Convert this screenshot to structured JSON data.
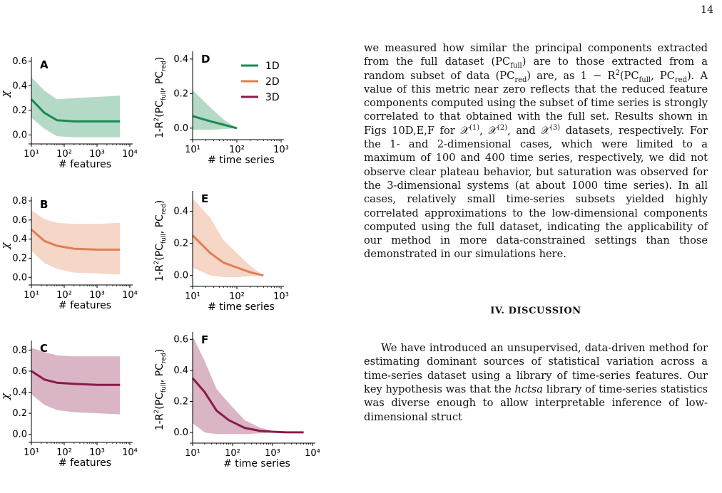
{
  "page": {
    "number": "14"
  },
  "figure": {
    "panel_letters": {
      "A": "A",
      "B": "B",
      "C": "C",
      "D": "D",
      "E": "E",
      "F": "F"
    },
    "legend": [
      {
        "label": "1D",
        "color": "#1a8a52"
      },
      {
        "label": "2D",
        "color": "#e07f52"
      },
      {
        "label": "3D",
        "color": "#8a1a4b"
      }
    ],
    "left_xlabel": "# features",
    "right_xlabel": "# time series",
    "left_ylabel": "χ",
    "right_ylabel_prefix": "1-R",
    "right_ylabel_super": "2",
    "right_ylabel_mid1": "(PC",
    "right_ylabel_sub1": "full",
    "right_ylabel_mid2": ", PC",
    "right_ylabel_sub2": "red",
    "right_ylabel_end": ")"
  },
  "chart_data": [
    {
      "panel": "A",
      "type": "line",
      "xlabel": "# features",
      "ylabel": "χ",
      "xscale": "log",
      "xlim": [
        10,
        10000
      ],
      "ylim": [
        -0.05,
        0.6
      ],
      "yticks": [
        "0.0",
        "0.2",
        "0.4",
        "0.6"
      ],
      "xticks": [
        "10¹",
        "10²",
        "10³",
        "10⁴"
      ],
      "series": [
        {
          "name": "1D",
          "color": "#1a8a52",
          "x": [
            10,
            25,
            60,
            200,
            1000,
            5000
          ],
          "y": [
            0.29,
            0.18,
            0.12,
            0.11,
            0.11,
            0.11
          ],
          "lower": [
            0.14,
            0.05,
            -0.01,
            -0.02,
            -0.02,
            -0.02
          ],
          "upper": [
            0.47,
            0.36,
            0.29,
            0.3,
            0.31,
            0.32
          ]
        }
      ]
    },
    {
      "panel": "B",
      "type": "line",
      "xlabel": "# features",
      "ylabel": "χ",
      "xscale": "log",
      "xlim": [
        10,
        10000
      ],
      "ylim": [
        -0.05,
        0.8
      ],
      "yticks": [
        "0.0",
        "0.2",
        "0.4",
        "0.6",
        "0.8"
      ],
      "xticks": [
        "10¹",
        "10²",
        "10³",
        "10⁴"
      ],
      "series": [
        {
          "name": "2D",
          "color": "#e07f52",
          "x": [
            10,
            25,
            60,
            200,
            1000,
            5000
          ],
          "y": [
            0.5,
            0.38,
            0.33,
            0.3,
            0.29,
            0.29
          ],
          "lower": [
            0.28,
            0.15,
            0.09,
            0.05,
            0.04,
            0.03
          ],
          "upper": [
            0.7,
            0.61,
            0.57,
            0.56,
            0.56,
            0.57
          ]
        }
      ]
    },
    {
      "panel": "C",
      "type": "line",
      "xlabel": "# features",
      "ylabel": "χ",
      "xscale": "log",
      "xlim": [
        10,
        10000
      ],
      "ylim": [
        -0.05,
        0.85
      ],
      "yticks": [
        "0.0",
        "0.2",
        "0.4",
        "0.6",
        "0.8"
      ],
      "xticks": [
        "10¹",
        "10²",
        "10³",
        "10⁴"
      ],
      "series": [
        {
          "name": "3D",
          "color": "#8a1a4b",
          "x": [
            10,
            25,
            60,
            200,
            1000,
            5000
          ],
          "y": [
            0.6,
            0.52,
            0.49,
            0.48,
            0.47,
            0.47
          ],
          "lower": [
            0.38,
            0.28,
            0.23,
            0.21,
            0.2,
            0.19
          ],
          "upper": [
            0.82,
            0.78,
            0.75,
            0.74,
            0.74,
            0.74
          ]
        }
      ]
    },
    {
      "panel": "D",
      "type": "line",
      "xlabel": "# time series",
      "ylabel": "1-R²(PC_full, PC_red)",
      "xscale": "log",
      "xlim": [
        10,
        1000
      ],
      "ylim": [
        -0.05,
        0.42
      ],
      "yticks": [
        "0.0",
        "0.2",
        "0.4"
      ],
      "xticks": [
        "10¹",
        "10²",
        "10³"
      ],
      "series": [
        {
          "name": "1D",
          "color": "#1a8a52",
          "x": [
            10,
            25,
            50,
            100
          ],
          "y": [
            0.07,
            0.04,
            0.02,
            0.0
          ],
          "lower": [
            -0.01,
            -0.01,
            -0.005,
            0.0
          ],
          "upper": [
            0.22,
            0.12,
            0.05,
            0.0
          ]
        }
      ]
    },
    {
      "panel": "E",
      "type": "line",
      "xlabel": "# time series",
      "ylabel": "1-R²(PC_full, PC_red)",
      "xscale": "log",
      "xlim": [
        10,
        1000
      ],
      "ylim": [
        -0.05,
        0.5
      ],
      "yticks": [
        "0.0",
        "0.2",
        "0.4"
      ],
      "xticks": [
        "10¹",
        "10²",
        "10³"
      ],
      "series": [
        {
          "name": "2D",
          "color": "#e07f52",
          "x": [
            10,
            25,
            50,
            100,
            200,
            400
          ],
          "y": [
            0.25,
            0.14,
            0.08,
            0.05,
            0.02,
            0.0
          ],
          "lower": [
            0.05,
            0.0,
            -0.01,
            -0.01,
            -0.005,
            0.0
          ],
          "upper": [
            0.48,
            0.36,
            0.22,
            0.14,
            0.06,
            0.0
          ]
        }
      ]
    },
    {
      "panel": "F",
      "type": "line",
      "xlabel": "# time series",
      "ylabel": "1-R²(PC_full, PC_red)",
      "xscale": "log",
      "xlim": [
        10,
        10000
      ],
      "ylim": [
        -0.05,
        0.62
      ],
      "yticks": [
        "0.0",
        "0.2",
        "0.4",
        "0.6"
      ],
      "xticks": [
        "10¹",
        "10²",
        "10³",
        "10⁴"
      ],
      "series": [
        {
          "name": "3D",
          "color": "#8a1a4b",
          "x": [
            10,
            20,
            40,
            80,
            200,
            500,
            1000,
            2000,
            6000
          ],
          "y": [
            0.35,
            0.26,
            0.14,
            0.08,
            0.03,
            0.01,
            0.005,
            0.002,
            0.001
          ],
          "lower": [
            0.06,
            0.0,
            -0.01,
            -0.01,
            -0.01,
            -0.005,
            0.0,
            0.0,
            0.0
          ],
          "upper": [
            0.62,
            0.46,
            0.28,
            0.19,
            0.08,
            0.03,
            0.01,
            0.005,
            0.002
          ]
        }
      ]
    }
  ],
  "text": {
    "p1": [
      "we measured how similar the principal components extracted from the full dataset (PC",
      "full",
      ") are to those extracted from a random subset of data (PC",
      "red",
      ") are, as 1 − R",
      "2",
      "(PC",
      "full",
      ", PC",
      "red",
      "). A value of this metric near zero reflects that the reduced feature components computed using the subset of time series is strongly correlated to that obtained with the full set. Results shown in Figs 10D,E,F for 𝒳",
      "(1)",
      ", 𝒳",
      "(2)",
      ", and 𝒳",
      "(3)",
      " datasets, respectively. For the 1- and 2-dimensional cases, which were limited to a maximum of 100 and 400 time series, respectively, we did not observe clear plateau behavior, but saturation was observed for the 3-dimensional systems (at about 1000 time series). In all cases, relatively small time-series subsets yielded highly correlated approximations to the low-dimensional components computed using the full dataset, indicating the applicability of our method in more data-constrained settings than those demonstrated in our simulations here."
    ],
    "heading": "IV.   DISCUSSION",
    "p2_a": "We have introduced an unsupervised, data-driven method for estimating dominant sources of statistical variation across a time-series dataset using a library of time-series features. Our key hypothesis was that the ",
    "p2_em": "hctsa",
    "p2_b": " library of time-series statistics was diverse enough to allow interpretable inference of low-dimensional struct"
  }
}
